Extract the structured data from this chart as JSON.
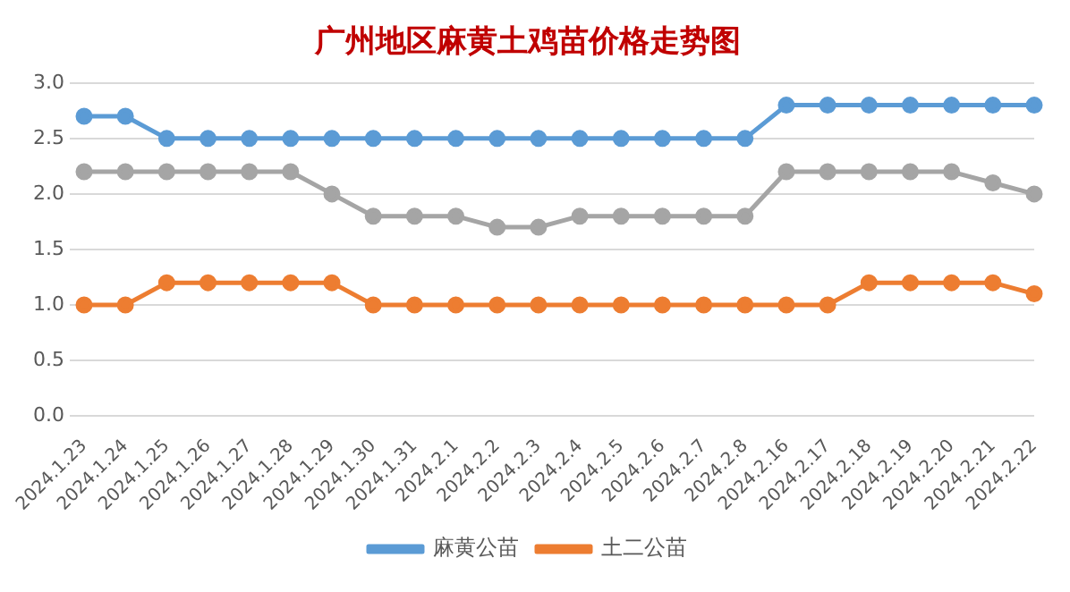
{
  "chart_data": {
    "type": "line",
    "title": "广州地区麻黄土鸡苗价格走势图",
    "categories": [
      "2024.1.23",
      "2024.1.24",
      "2024.1.25",
      "2024.1.26",
      "2024.1.27",
      "2024.1.28",
      "2024.1.29",
      "2024.1.30",
      "2024.1.31",
      "2024.2.1",
      "2024.2.2",
      "2024.2.3",
      "2024.2.4",
      "2024.2.5",
      "2024.2.6",
      "2024.2.7",
      "2024.2.8",
      "2024.2.16",
      "2024.2.17",
      "2024.2.18",
      "2024.2.19",
      "2024.2.20",
      "2024.2.21",
      "2024.2.22"
    ],
    "series": [
      {
        "name": "麻黄公苗",
        "color": "#5b9bd5",
        "values": [
          2.7,
          2.7,
          2.5,
          2.5,
          2.5,
          2.5,
          2.5,
          2.5,
          2.5,
          2.5,
          2.5,
          2.5,
          2.5,
          2.5,
          2.5,
          2.5,
          2.5,
          2.8,
          2.8,
          2.8,
          2.8,
          2.8,
          2.8,
          2.8
        ]
      },
      {
        "name": "土二公苗",
        "color": "#ed7d31",
        "values": [
          1.0,
          1.0,
          1.2,
          1.2,
          1.2,
          1.2,
          1.2,
          1.0,
          1.0,
          1.0,
          1.0,
          1.0,
          1.0,
          1.0,
          1.0,
          1.0,
          1.0,
          1.0,
          1.0,
          1.2,
          1.2,
          1.2,
          1.2,
          1.1
        ]
      },
      {
        "color": "#a5a5a5",
        "values": [
          2.2,
          2.2,
          2.2,
          2.2,
          2.2,
          2.2,
          2.0,
          1.8,
          1.8,
          1.8,
          1.7,
          1.7,
          1.8,
          1.8,
          1.8,
          1.8,
          1.8,
          2.2,
          2.2,
          2.2,
          2.2,
          2.2,
          2.1,
          2.0
        ]
      }
    ],
    "ylim": [
      0,
      3
    ],
    "yticks": [
      {
        "value": 0,
        "label": "0.0"
      },
      {
        "value": 0.5,
        "label": "0.5"
      },
      {
        "value": 1,
        "label": "1.0"
      },
      {
        "value": 1.5,
        "label": "1.5"
      },
      {
        "value": 2,
        "label": "2.0"
      },
      {
        "value": 2.5,
        "label": "2.5"
      },
      {
        "value": 3,
        "label": "3.0"
      }
    ],
    "grid": "y",
    "legend": "bottom",
    "marker": "circle",
    "line_style": "solid"
  }
}
